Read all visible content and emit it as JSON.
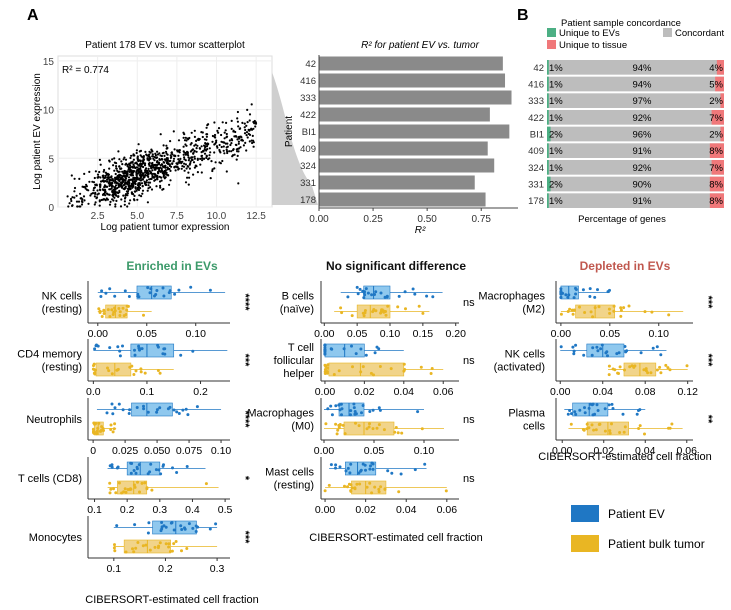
{
  "panel_labels": {
    "a": "A",
    "b": "B"
  },
  "colors": {
    "ev": "#1f77c4",
    "ev_fill": "#8fc8ee",
    "tumor": "#e9b623",
    "tumor_fill": "#f1d48a",
    "bar": "#8a8a8a",
    "unique_ev": "#4caf84",
    "concordant": "#bdbdbd",
    "unique_tissue": "#f0787a",
    "enriched": "#3c9a6a",
    "depleted": "#c0584f"
  },
  "chart_data": [
    {
      "id": "scatter",
      "type": "scatter",
      "title": "Patient 178 EV vs. tumor scatterplot",
      "annotation": "R² = 0.774",
      "xlabel": "Log patient tumor expression",
      "ylabel": "Log patient EV expression",
      "xlim": [
        0,
        13.5
      ],
      "ylim": [
        0,
        15.5
      ],
      "x_ticks": [
        "2.5",
        "5.0",
        "7.5",
        "10.0",
        "12.5"
      ],
      "x_tick_values": [
        2.5,
        5.0,
        7.5,
        10.0,
        12.5
      ],
      "y_ticks": [
        "0",
        "5",
        "10",
        "15"
      ],
      "y_tick_values": [
        0,
        5,
        10,
        15
      ],
      "trend": {
        "slope": 0.6,
        "intercept": 0.3,
        "spread": 1.1,
        "n_points": 1100,
        "x_range": [
          0.6,
          12.5
        ]
      }
    },
    {
      "id": "rbar",
      "type": "bar",
      "orientation": "horizontal",
      "title": "R² for patient EV vs. tumor",
      "xlabel": "R²",
      "ylabel": "Patient",
      "categories": [
        "42",
        "416",
        "333",
        "422",
        "BI1",
        "409",
        "324",
        "331",
        "178"
      ],
      "values": [
        0.85,
        0.86,
        0.89,
        0.79,
        0.88,
        0.78,
        0.81,
        0.72,
        0.77
      ],
      "xlim": [
        0,
        0.92
      ],
      "x_ticks": [
        "0.00",
        "0.25",
        "0.50",
        "0.75"
      ],
      "x_tick_values": [
        0,
        0.25,
        0.5,
        0.75
      ]
    },
    {
      "id": "concordance",
      "type": "bar",
      "stacked": true,
      "title": "Patient sample concordance",
      "xlabel": "Percentage of genes",
      "legend": [
        "Unique to EVs",
        "Concordant",
        "Unique to tissue"
      ],
      "categories": [
        "42",
        "416",
        "333",
        "422",
        "BI1",
        "409",
        "324",
        "331",
        "178"
      ],
      "unique_ev": [
        1,
        1,
        1,
        1,
        2,
        1,
        1,
        2,
        1
      ],
      "concordant": [
        94,
        94,
        97,
        92,
        96,
        91,
        92,
        90,
        91
      ],
      "unique_tissue": [
        4,
        5,
        2,
        7,
        2,
        8,
        7,
        8,
        8
      ],
      "unique_ev_labels": [
        "1%",
        "1%",
        "1%",
        "1%",
        "2%",
        "1%",
        "1%",
        "2%",
        "1%"
      ],
      "concordant_labels": [
        "94%",
        "94%",
        "97%",
        "92%",
        "96%",
        "91%",
        "92%",
        "90%",
        "91%"
      ],
      "unique_tissue_labels": [
        "4%",
        "5%",
        "2%",
        "7%",
        "2%",
        "8%",
        "7%",
        "8%",
        "8%"
      ]
    },
    {
      "id": "boxplots",
      "type": "box",
      "legend": [
        "Patient EV",
        "Patient bulk tumor"
      ],
      "xlabel": "CIBERSORT-estimated cell fraction",
      "groups": [
        {
          "title": "Enriched in EVs",
          "title_color": "enriched",
          "show_xlabel": true,
          "plots": [
            {
              "label": [
                "NK cells",
                "(resting)"
              ],
              "sig": "****",
              "xlim": [
                -0.01,
                0.135
              ],
              "ticks": [
                "0.00",
                "0.05",
                "0.10"
              ],
              "tick_values": [
                0,
                0.05,
                0.1
              ],
              "ev": [
                0.0,
                0.04,
                0.055,
                0.075,
                0.13
              ],
              "tumor": [
                0.0,
                0.008,
                0.018,
                0.03,
                0.055
              ]
            },
            {
              "label": [
                "CD4 memory",
                "(resting)"
              ],
              "sig": "***",
              "xlim": [
                -0.01,
                0.255
              ],
              "ticks": [
                "0.0",
                "0.1",
                "0.2"
              ],
              "tick_values": [
                0,
                0.1,
                0.2
              ],
              "ev": [
                0.0,
                0.07,
                0.1,
                0.15,
                0.25
              ],
              "tumor": [
                0.0,
                0.005,
                0.04,
                0.07,
                0.15
              ]
            },
            {
              "label": [
                "Neutrophils"
              ],
              "sig": "****",
              "xlim": [
                -0.004,
                0.107
              ],
              "ticks": [
                "0",
                "0.025",
                "0.050",
                "0.075",
                "0.10"
              ],
              "tick_values": [
                0,
                0.025,
                0.05,
                0.075,
                0.1
              ],
              "ev": [
                0.003,
                0.03,
                0.042,
                0.062,
                0.1
              ],
              "tumor": [
                0.0,
                0.001,
                0.004,
                0.008,
                0.018
              ]
            },
            {
              "label": [
                "T cells (CD8)"
              ],
              "sig": "*",
              "xlim": [
                0.08,
                0.515
              ],
              "ticks": [
                "0.1",
                "0.2",
                "0.3",
                "0.4",
                "0.5"
              ],
              "tick_values": [
                0.1,
                0.2,
                0.3,
                0.4,
                0.5
              ],
              "ev": [
                0.14,
                0.2,
                0.24,
                0.3,
                0.44
              ],
              "tumor": [
                0.14,
                0.17,
                0.22,
                0.26,
                0.48
              ]
            },
            {
              "label": [
                "Monocytes"
              ],
              "sig": "***",
              "xlim": [
                0.05,
                0.325
              ],
              "ticks": [
                "0.1",
                "0.2",
                "0.3"
              ],
              "tick_values": [
                0.1,
                0.2,
                0.3
              ],
              "ev": [
                0.1,
                0.175,
                0.22,
                0.26,
                0.3
              ],
              "tumor": [
                0.1,
                0.12,
                0.165,
                0.21,
                0.3
              ]
            }
          ]
        },
        {
          "title": "No significant difference",
          "title_color": "",
          "show_xlabel": true,
          "plots": [
            {
              "label": [
                "B cells",
                "(naïve)"
              ],
              "sig": "ns",
              "xlim": [
                -0.005,
                0.205
              ],
              "ticks": [
                "0.00",
                "0.05",
                "0.10",
                "0.15",
                "0.20"
              ],
              "tick_values": [
                0,
                0.05,
                0.1,
                0.15,
                0.2
              ],
              "ev": [
                0.025,
                0.06,
                0.075,
                0.1,
                0.18
              ],
              "tumor": [
                0.015,
                0.05,
                0.07,
                0.1,
                0.16
              ]
            },
            {
              "label": [
                "T cell",
                "follicular",
                "helper"
              ],
              "sig": "ns",
              "xlim": [
                -0.002,
                0.068
              ],
              "ticks": [
                "0.00",
                "0.02",
                "0.04",
                "0.06"
              ],
              "tick_values": [
                0,
                0.02,
                0.04,
                0.06
              ],
              "ev": [
                0.0,
                0.0,
                0.01,
                0.02,
                0.04
              ],
              "tumor": [
                0.0,
                0.002,
                0.018,
                0.04,
                0.06
              ]
            },
            {
              "label": [
                "Macrophages",
                "(M0)"
              ],
              "sig": "ns",
              "xlim": [
                -0.003,
                0.135
              ],
              "ticks": [
                "0.00",
                "0.05",
                "0.10"
              ],
              "tick_values": [
                0,
                0.05,
                0.1
              ],
              "ev": [
                0.0,
                0.015,
                0.025,
                0.04,
                0.1
              ],
              "tumor": [
                0.0,
                0.02,
                0.04,
                0.07,
                0.12
              ]
            },
            {
              "label": [
                "Mast cells",
                "(resting)"
              ],
              "sig": "ns",
              "xlim": [
                -0.002,
                0.066
              ],
              "ticks": [
                "0.00",
                "0.02",
                "0.04",
                "0.06"
              ],
              "tick_values": [
                0,
                0.02,
                0.04,
                0.06
              ],
              "ev": [
                0.002,
                0.01,
                0.016,
                0.025,
                0.05
              ],
              "tumor": [
                0.0,
                0.013,
                0.02,
                0.03,
                0.06
              ]
            }
          ]
        },
        {
          "title": "Depleted in EVs",
          "title_color": "depleted",
          "show_xlabel": true,
          "plots": [
            {
              "label": [
                "Macrophages",
                "(M2)"
              ],
              "sig": "***",
              "xlim": [
                -0.005,
                0.135
              ],
              "ticks": [
                "0.00",
                "0.05",
                "0.10"
              ],
              "tick_values": [
                0,
                0.05,
                0.1
              ],
              "ev": [
                0.0,
                0.0,
                0.008,
                0.018,
                0.05
              ],
              "tumor": [
                0.0,
                0.015,
                0.035,
                0.055,
                0.125
              ]
            },
            {
              "label": [
                "NK cells",
                "(activated)"
              ],
              "sig": "***",
              "xlim": [
                -0.004,
                0.125
              ],
              "ticks": [
                "0.00",
                "0.04",
                "0.08",
                "0.12"
              ],
              "tick_values": [
                0,
                0.04,
                0.08,
                0.12
              ],
              "ev": [
                0.0,
                0.025,
                0.04,
                0.06,
                0.1
              ],
              "tumor": [
                0.045,
                0.06,
                0.075,
                0.09,
                0.12
              ]
            },
            {
              "label": [
                "Plasma",
                "cells"
              ],
              "sig": "**",
              "xlim": [
                -0.003,
                0.063
              ],
              "ticks": [
                "0.00",
                "0.02",
                "0.04",
                "0.06"
              ],
              "tick_values": [
                0,
                0.02,
                0.04,
                0.06
              ],
              "ev": [
                0.001,
                0.005,
                0.013,
                0.022,
                0.04
              ],
              "tumor": [
                0.003,
                0.012,
                0.022,
                0.032,
                0.058
              ]
            }
          ]
        }
      ]
    }
  ]
}
